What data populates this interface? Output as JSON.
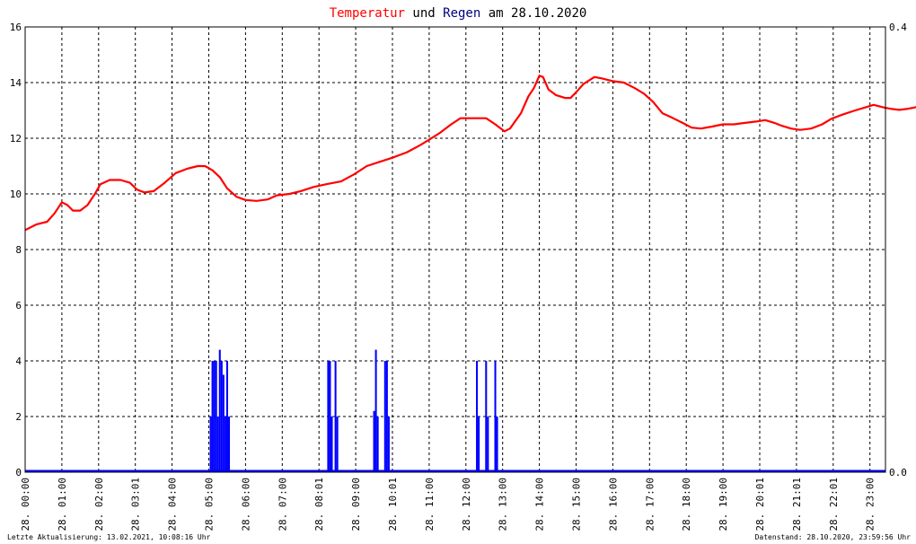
{
  "title": {
    "part1": "Temperatur",
    "part2": " und ",
    "part3": "Regen",
    "part4": " am 28.10.2020",
    "color1": "#ff0000",
    "color2": "#000000",
    "color3": "#000080",
    "color4": "#000000"
  },
  "footer": {
    "left": "Letzte Aktualisierung: 13.02.2021, 10:08:16 Uhr",
    "right": "Datenstand: 28.10.2020, 23:59:56 Uhr"
  },
  "chart_data": {
    "type": "line",
    "title": "Temperatur und Regen am 28.10.2020",
    "x_range_hours": [
      0,
      24
    ],
    "grid": true,
    "y_left": {
      "min": 0,
      "max": 16,
      "ticks": [
        "0",
        "2",
        "4",
        "6",
        "8",
        "10",
        "12",
        "14",
        "16"
      ]
    },
    "y_right": {
      "min": 0.0,
      "max": 0.4,
      "ticks": [
        "0.0",
        "0.4"
      ]
    },
    "x_tick_labels": [
      "28. 00:00",
      "28. 01:00",
      "28. 02:00",
      "28. 03:01",
      "28. 04:00",
      "28. 05:00",
      "28. 06:00",
      "28. 07:00",
      "28. 08:01",
      "28. 09:00",
      "28. 10:01",
      "28. 11:00",
      "28. 12:00",
      "28. 13:00",
      "28. 14:00",
      "28. 15:00",
      "28. 16:00",
      "28. 17:00",
      "28. 18:00",
      "28. 19:00",
      "28. 20:01",
      "28. 21:01",
      "28. 22:01",
      "28. 23:00"
    ],
    "series": [
      {
        "color": "#ff0000",
        "axis": "left",
        "points": [
          [
            0.0,
            8.7
          ],
          [
            0.3,
            8.9
          ],
          [
            0.6,
            9.0
          ],
          [
            0.8,
            9.3
          ],
          [
            1.0,
            9.7
          ],
          [
            1.15,
            9.6
          ],
          [
            1.3,
            9.4
          ],
          [
            1.5,
            9.4
          ],
          [
            1.7,
            9.6
          ],
          [
            1.9,
            10.0
          ],
          [
            2.05,
            10.35
          ],
          [
            2.3,
            10.5
          ],
          [
            2.6,
            10.5
          ],
          [
            2.85,
            10.4
          ],
          [
            3.05,
            10.15
          ],
          [
            3.25,
            10.05
          ],
          [
            3.5,
            10.1
          ],
          [
            3.8,
            10.4
          ],
          [
            4.1,
            10.75
          ],
          [
            4.4,
            10.9
          ],
          [
            4.7,
            11.0
          ],
          [
            4.9,
            11.0
          ],
          [
            5.1,
            10.85
          ],
          [
            5.3,
            10.6
          ],
          [
            5.5,
            10.2
          ],
          [
            5.75,
            9.9
          ],
          [
            6.0,
            9.78
          ],
          [
            6.3,
            9.75
          ],
          [
            6.6,
            9.8
          ],
          [
            6.85,
            9.95
          ],
          [
            7.2,
            10.0
          ],
          [
            7.5,
            10.1
          ],
          [
            7.85,
            10.25
          ],
          [
            8.2,
            10.35
          ],
          [
            8.6,
            10.45
          ],
          [
            8.95,
            10.7
          ],
          [
            9.3,
            11.0
          ],
          [
            9.65,
            11.15
          ],
          [
            10.0,
            11.3
          ],
          [
            10.4,
            11.5
          ],
          [
            10.75,
            11.75
          ],
          [
            11.0,
            11.95
          ],
          [
            11.3,
            12.2
          ],
          [
            11.6,
            12.5
          ],
          [
            11.85,
            12.72
          ],
          [
            12.2,
            12.72
          ],
          [
            12.55,
            12.72
          ],
          [
            12.8,
            12.5
          ],
          [
            13.05,
            12.25
          ],
          [
            13.2,
            12.35
          ],
          [
            13.5,
            12.9
          ],
          [
            13.7,
            13.5
          ],
          [
            13.85,
            13.8
          ],
          [
            14.0,
            14.25
          ],
          [
            14.1,
            14.2
          ],
          [
            14.25,
            13.75
          ],
          [
            14.45,
            13.55
          ],
          [
            14.7,
            13.45
          ],
          [
            14.85,
            13.45
          ],
          [
            15.0,
            13.65
          ],
          [
            15.2,
            13.95
          ],
          [
            15.5,
            14.2
          ],
          [
            15.7,
            14.15
          ],
          [
            16.0,
            14.05
          ],
          [
            16.3,
            14.0
          ],
          [
            16.6,
            13.8
          ],
          [
            16.85,
            13.6
          ],
          [
            17.1,
            13.3
          ],
          [
            17.35,
            12.9
          ],
          [
            17.6,
            12.75
          ],
          [
            17.9,
            12.55
          ],
          [
            18.15,
            12.38
          ],
          [
            18.4,
            12.35
          ],
          [
            18.7,
            12.42
          ],
          [
            19.0,
            12.5
          ],
          [
            19.3,
            12.5
          ],
          [
            19.6,
            12.55
          ],
          [
            19.9,
            12.6
          ],
          [
            20.15,
            12.65
          ],
          [
            20.4,
            12.55
          ],
          [
            20.6,
            12.45
          ],
          [
            20.85,
            12.35
          ],
          [
            21.1,
            12.3
          ],
          [
            21.4,
            12.35
          ],
          [
            21.7,
            12.5
          ],
          [
            21.95,
            12.7
          ],
          [
            22.25,
            12.85
          ],
          [
            22.6,
            13.0
          ],
          [
            22.85,
            13.1
          ],
          [
            23.1,
            13.2
          ],
          [
            23.4,
            13.1
          ],
          [
            23.6,
            13.05
          ],
          [
            23.8,
            13.02
          ],
          [
            24.0,
            13.05
          ],
          [
            24.2,
            13.1
          ],
          [
            24.45,
            13.2
          ]
        ]
      },
      {
        "color": "#0000ff",
        "axis": "left",
        "bars": [
          [
            5.05,
            2.0
          ],
          [
            5.1,
            4.0
          ],
          [
            5.15,
            4.0
          ],
          [
            5.2,
            4.0
          ],
          [
            5.25,
            2.0
          ],
          [
            5.3,
            4.4
          ],
          [
            5.35,
            4.0
          ],
          [
            5.4,
            3.5
          ],
          [
            5.45,
            2.0
          ],
          [
            5.5,
            4.0
          ],
          [
            5.55,
            2.0
          ],
          [
            8.25,
            4.0
          ],
          [
            8.3,
            4.0
          ],
          [
            8.35,
            2.0
          ],
          [
            8.45,
            4.0
          ],
          [
            8.5,
            2.0
          ],
          [
            9.5,
            2.2
          ],
          [
            9.55,
            4.4
          ],
          [
            9.6,
            2.0
          ],
          [
            9.8,
            4.0
          ],
          [
            9.85,
            4.0
          ],
          [
            9.9,
            2.0
          ],
          [
            12.3,
            4.0
          ],
          [
            12.35,
            2.0
          ],
          [
            12.55,
            4.0
          ],
          [
            12.6,
            2.0
          ],
          [
            12.8,
            4.0
          ],
          [
            12.85,
            2.0
          ]
        ],
        "bar_width_hours": 0.05
      }
    ]
  }
}
